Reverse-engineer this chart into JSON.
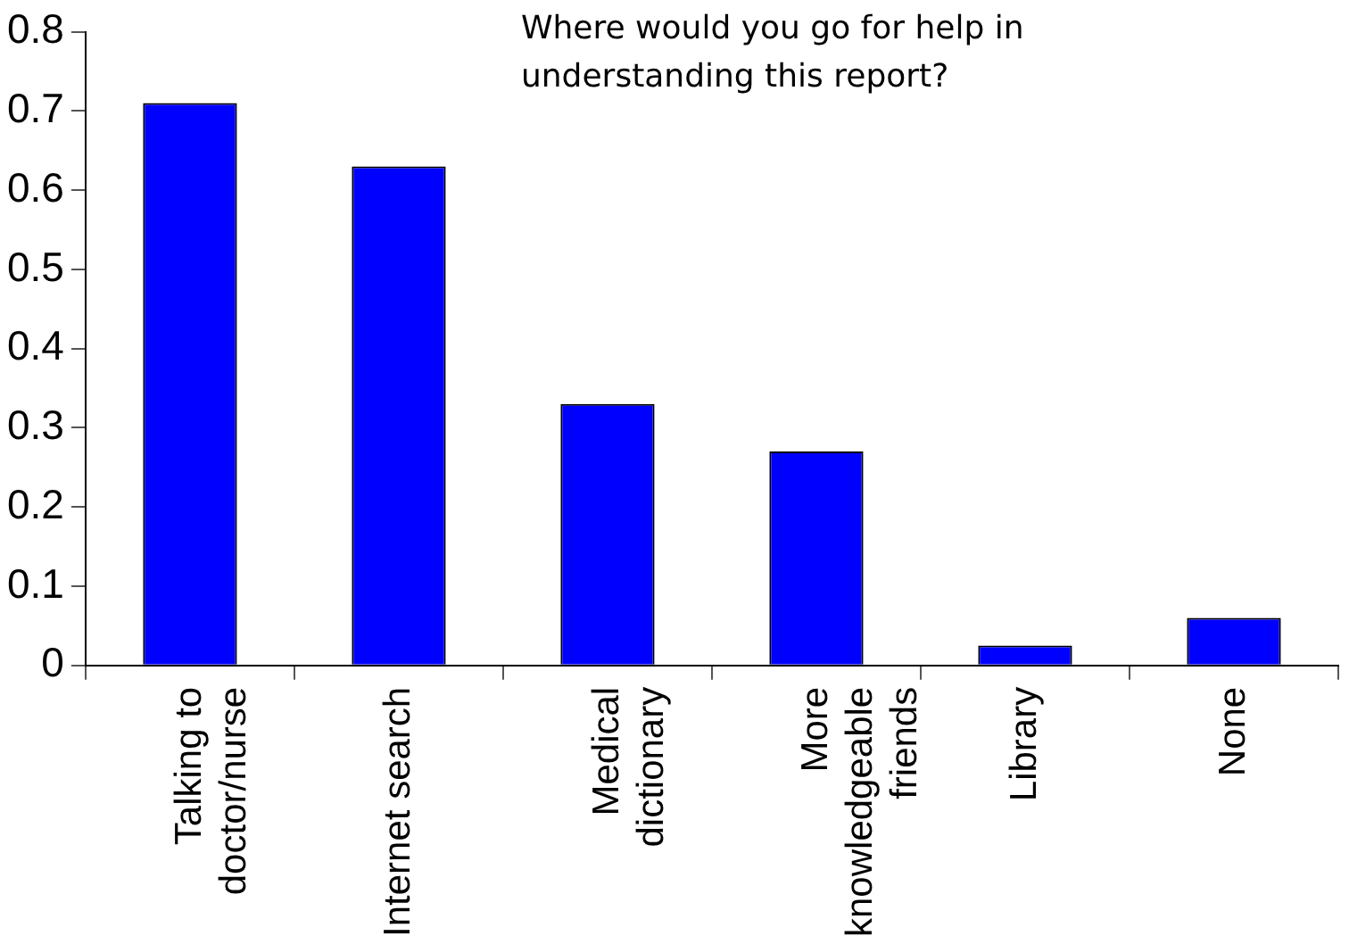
{
  "chart_data": {
    "type": "bar",
    "title": "Where would you go for help in understanding this report?",
    "categories": [
      "Talking to\ndoctor/nurse",
      "Internet search",
      "Medical\ndictionary",
      "More\nknowledgeable\nfriends",
      "Library",
      "None"
    ],
    "values": [
      0.71,
      0.63,
      0.33,
      0.27,
      0.025,
      0.06
    ],
    "color": "#0000ff",
    "ylim": [
      0,
      0.8
    ],
    "yticks": [
      0,
      0.1,
      0.2,
      0.3,
      0.4,
      0.5,
      0.6,
      0.7,
      0.8
    ],
    "grid": false,
    "legend": false
  }
}
